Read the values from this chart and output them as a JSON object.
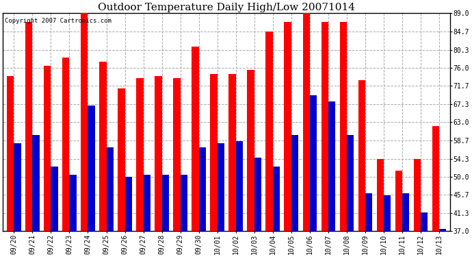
{
  "title": "Outdoor Temperature Daily High/Low 20071014",
  "copyright_text": "Copyright 2007 Cartronics.com",
  "dates": [
    "09/20",
    "09/21",
    "09/22",
    "09/23",
    "09/24",
    "09/25",
    "09/26",
    "09/27",
    "09/28",
    "09/29",
    "09/30",
    "10/01",
    "10/02",
    "10/03",
    "10/04",
    "10/05",
    "10/06",
    "10/07",
    "10/08",
    "10/09",
    "10/10",
    "10/11",
    "10/12",
    "10/13"
  ],
  "highs": [
    74.0,
    87.0,
    76.5,
    78.5,
    89.0,
    77.5,
    71.0,
    73.5,
    74.0,
    73.5,
    81.0,
    74.5,
    74.5,
    75.5,
    84.7,
    87.0,
    89.0,
    87.0,
    87.0,
    73.0,
    54.3,
    51.5,
    54.3,
    62.0
  ],
  "lows": [
    58.0,
    60.0,
    52.5,
    50.5,
    67.0,
    57.0,
    50.0,
    50.5,
    50.5,
    50.5,
    57.0,
    58.0,
    58.5,
    54.5,
    52.5,
    60.0,
    69.5,
    68.0,
    60.0,
    46.0,
    45.5,
    46.0,
    41.5,
    37.5
  ],
  "high_color": "#ff0000",
  "low_color": "#0000cc",
  "background_color": "#ffffff",
  "plot_bg_color": "#ffffff",
  "ymin": 37.0,
  "ymax": 89.0,
  "yticks": [
    37.0,
    41.3,
    45.7,
    50.0,
    54.3,
    58.7,
    63.0,
    67.3,
    71.7,
    76.0,
    80.3,
    84.7,
    89.0
  ],
  "ytick_labels": [
    "37.0",
    "41.3",
    "45.7",
    "50.0",
    "54.3",
    "58.7",
    "63.0",
    "67.3",
    "71.7",
    "76.0",
    "80.3",
    "84.7",
    "89.0"
  ],
  "grid_color": "#aaaaaa",
  "bar_width": 0.38,
  "title_fontsize": 11,
  "tick_fontsize": 7,
  "copyright_fontsize": 6.5
}
